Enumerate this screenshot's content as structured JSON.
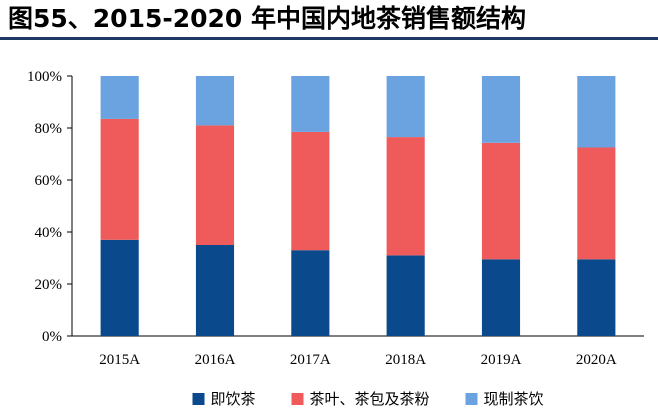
{
  "title": "图55、2015-2020 年中国内地茶销售额结构",
  "colors": {
    "title_rule": "#1f3864",
    "axis": "#000000"
  },
  "chart_data": {
    "type": "bar",
    "stacked": true,
    "categories": [
      "2015A",
      "2016A",
      "2017A",
      "2018A",
      "2019A",
      "2020A"
    ],
    "series": [
      {
        "name": "即饮茶",
        "color": "#0a4a8c",
        "values": [
          37,
          35,
          33,
          31,
          29.5,
          29.5
        ]
      },
      {
        "name": "茶叶、茶包及茶粉",
        "color": "#ef5b5b",
        "values": [
          46.5,
          46,
          45.5,
          45.5,
          44.8,
          43
        ]
      },
      {
        "name": "现制茶饮",
        "color": "#6aa3e0",
        "values": [
          16.5,
          19,
          21.5,
          23.5,
          25.7,
          27.5
        ]
      }
    ],
    "ylim": [
      0,
      100
    ],
    "yticks": [
      "0%",
      "20%",
      "40%",
      "60%",
      "80%",
      "100%"
    ],
    "grid": false,
    "legend_position": "bottom"
  }
}
